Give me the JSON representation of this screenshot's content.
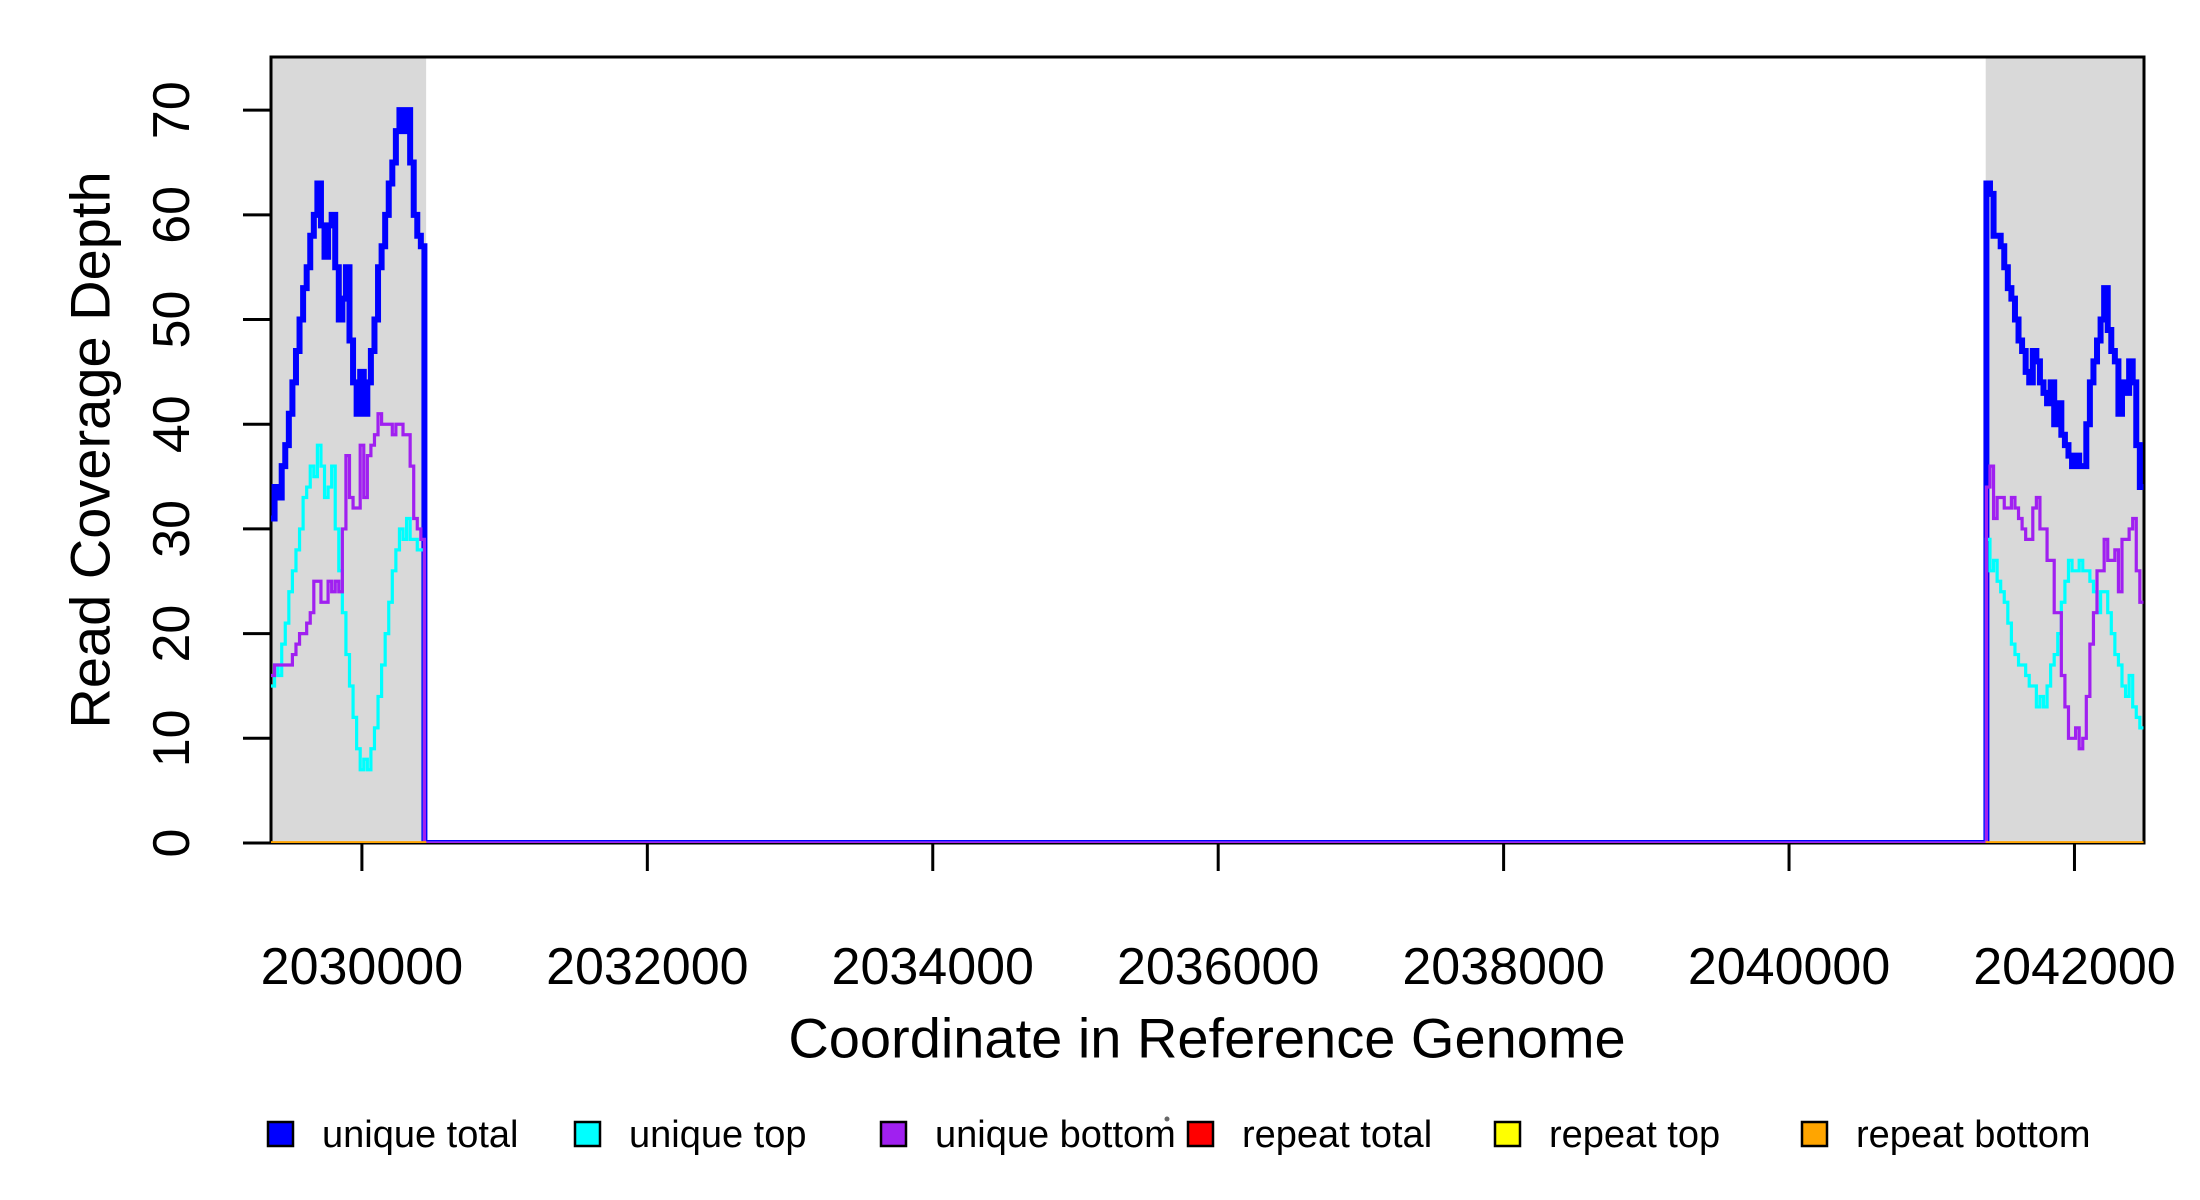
{
  "figure": {
    "background": "#FFFFFF",
    "xlabel": "Coordinate in Reference Genome",
    "ylabel": "Read Coverage Depth"
  },
  "chart_data": {
    "type": "line",
    "subtype": "step-coverage",
    "title": "",
    "xlabel": "Coordinate in Reference Genome",
    "ylabel": "Read Coverage Depth",
    "xlim": [
      2029363,
      2042483
    ],
    "ylim": [
      0,
      75
    ],
    "x_ticks": [
      2030000,
      2032000,
      2034000,
      2036000,
      2038000,
      2040000,
      2042000
    ],
    "y_ticks": [
      0,
      10,
      20,
      30,
      40,
      50,
      60,
      70
    ],
    "grid": false,
    "legend_position": "bottom",
    "shaded_regions": [
      {
        "from": 2029363,
        "to": 2030450,
        "color": "#D9D9D9"
      },
      {
        "from": 2041378,
        "to": 2042483,
        "color": "#D9D9D9"
      }
    ],
    "step_bp": 25,
    "series": [
      {
        "name": "unique total",
        "color": "#0000FF",
        "width": 6,
        "start": 2029363,
        "step": 25,
        "left_values": [
          31,
          34,
          33,
          36,
          38,
          41,
          44,
          47,
          50,
          53,
          55,
          58,
          60,
          63,
          59,
          56,
          59,
          60,
          55,
          50,
          52,
          55,
          48,
          44,
          41,
          45,
          41,
          44,
          47,
          50,
          55,
          57,
          60,
          63,
          65,
          68,
          70,
          68,
          70,
          65,
          60,
          58,
          57
        ],
        "zero_from": 2030438,
        "zero_to": 2041383,
        "right_start": 2041383,
        "right_values": [
          63,
          62,
          58,
          58,
          57,
          55,
          53,
          52,
          50,
          48,
          47,
          45,
          44,
          47,
          46,
          44,
          43,
          42,
          44,
          40,
          42,
          39,
          38,
          37,
          36,
          37,
          36,
          36,
          40,
          44,
          46,
          48,
          50,
          53,
          49,
          47,
          46,
          41,
          44,
          43,
          46,
          44,
          38,
          34
        ]
      },
      {
        "name": "unique top",
        "color": "#00FFFF",
        "width": 3.2,
        "start": 2029363,
        "step": 25,
        "left_values": [
          15,
          17,
          16,
          19,
          21,
          24,
          26,
          28,
          30,
          33,
          34,
          36,
          35,
          38,
          36,
          33,
          34,
          36,
          30,
          26,
          22,
          18,
          15,
          12,
          9,
          7,
          8,
          7,
          9,
          11,
          14,
          17,
          20,
          23,
          26,
          28,
          30,
          29,
          31,
          29,
          29,
          28,
          28
        ],
        "zero_from": 2030438,
        "zero_to": 2041383,
        "right_start": 2041383,
        "right_values": [
          29,
          26,
          27,
          25,
          24,
          23,
          21,
          19,
          18,
          17,
          17,
          16,
          15,
          15,
          13,
          14,
          13,
          15,
          17,
          18,
          20,
          23,
          25,
          27,
          26,
          26,
          27,
          26,
          26,
          25,
          24,
          22,
          24,
          24,
          22,
          20,
          18,
          17,
          15,
          14,
          16,
          13,
          12,
          11
        ]
      },
      {
        "name": "unique bottom",
        "color": "#A020F0",
        "width": 3.2,
        "start": 2029363,
        "step": 25,
        "left_values": [
          16,
          17,
          17,
          17,
          17,
          17,
          18,
          19,
          20,
          20,
          21,
          22,
          25,
          25,
          23,
          23,
          25,
          24,
          25,
          24,
          30,
          37,
          33,
          32,
          32,
          38,
          33,
          37,
          38,
          39,
          41,
          40,
          40,
          40,
          39,
          40,
          40,
          39,
          39,
          36,
          31,
          30,
          29
        ],
        "zero_from": 2030438,
        "zero_to": 2041383,
        "right_start": 2041383,
        "right_values": [
          34,
          36,
          31,
          33,
          33,
          32,
          32,
          33,
          32,
          31,
          30,
          29,
          29,
          32,
          33,
          30,
          30,
          27,
          27,
          22,
          22,
          16,
          13,
          10,
          10,
          11,
          9,
          10,
          14,
          19,
          22,
          26,
          26,
          29,
          27,
          27,
          28,
          24,
          29,
          29,
          30,
          31,
          26,
          23
        ]
      },
      {
        "name": "repeat total",
        "color": "#FF0000",
        "width": 3.2,
        "zero_runs": [
          [
            2029363,
            2030450
          ],
          [
            2041378,
            2042483
          ]
        ]
      },
      {
        "name": "repeat top",
        "color": "#FFFF00",
        "width": 3.2,
        "zero_runs": [
          [
            2029363,
            2030450
          ],
          [
            2041378,
            2042483
          ]
        ]
      },
      {
        "name": "repeat bottom",
        "color": "#FFA500",
        "width": 3.6,
        "zero_runs": [
          [
            2029363,
            2030450
          ],
          [
            2041378,
            2042483
          ]
        ]
      }
    ]
  },
  "legend": {
    "items": [
      {
        "label": "unique total",
        "color": "#0000FF"
      },
      {
        "label": "unique top",
        "color": "#00FFFF"
      },
      {
        "label": "unique bottom",
        "color": "#A020F0"
      },
      {
        "label": "repeat total",
        "color": "#FF0000"
      },
      {
        "label": "repeat top",
        "color": "#FFFF00"
      },
      {
        "label": "repeat bottom",
        "color": "#FFA500"
      }
    ],
    "stray_dot_color": "#666666"
  }
}
